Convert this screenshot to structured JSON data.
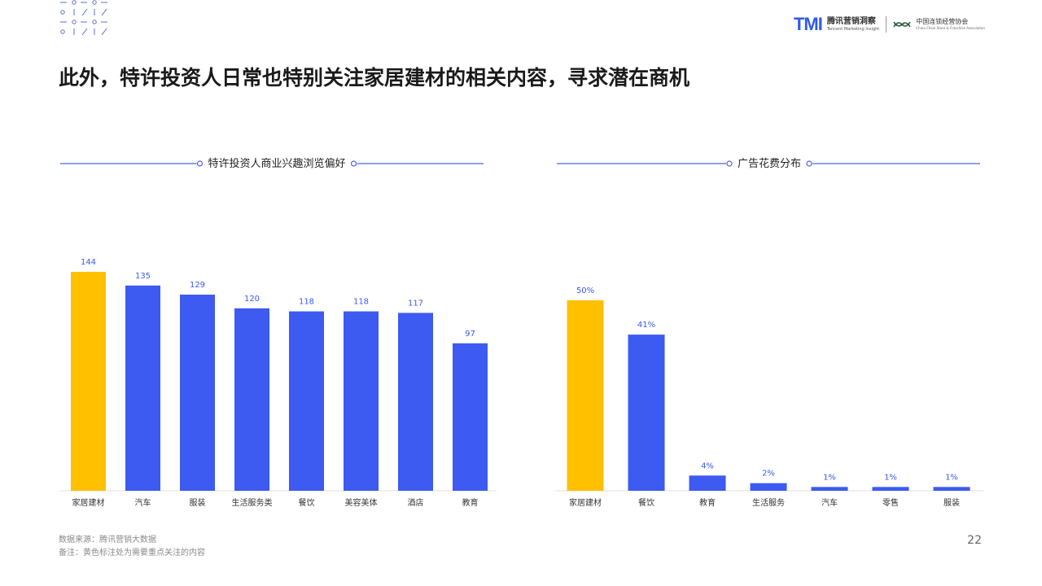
{
  "page": {
    "title": "此外，特许投资人日常也特别关注家居建材的相关内容，寻求潜在商机",
    "page_number": "22"
  },
  "logos": {
    "tmi_mark": "TMI",
    "tmi_name": "腾讯营销洞察",
    "tmi_en": "Tencent Marketing Insight",
    "ccfa_mark": "CCFA",
    "ccfa_name": "中国连锁经营协会",
    "ccfa_en": "China Chain Store & Franchise Association"
  },
  "footer": {
    "source": "数据来源：腾讯营销大数据",
    "note": "备注：黄色标注处为需要重点关注的内容"
  },
  "colors": {
    "highlight": "#FFC000",
    "bar": "#3D5AF1",
    "label": "#3D5AF1",
    "line": "#4A63E0"
  },
  "chart_data": [
    {
      "type": "bar",
      "title": "特许投资人商业兴趣浏览偏好",
      "categories": [
        "家居建材",
        "汽车",
        "服装",
        "生活服务类",
        "餐饮",
        "美容美体",
        "酒店",
        "教育"
      ],
      "values": [
        144,
        135,
        129,
        120,
        118,
        118,
        117,
        97
      ],
      "data_labels": [
        "144",
        "135",
        "129",
        "120",
        "118",
        "118",
        "117",
        "97"
      ],
      "highlight_index": 0,
      "ylim": [
        0,
        144
      ]
    },
    {
      "type": "bar",
      "title": "广告花费分布",
      "categories": [
        "家居建材",
        "餐饮",
        "教育",
        "生活服务",
        "汽车",
        "零售",
        "服装"
      ],
      "values": [
        50,
        41,
        4,
        2,
        1,
        1,
        1
      ],
      "data_labels": [
        "50%",
        "41%",
        "4%",
        "2%",
        "1%",
        "1%",
        "1%"
      ],
      "unit": "%",
      "highlight_index": 0,
      "ylim": [
        0,
        50
      ]
    }
  ]
}
